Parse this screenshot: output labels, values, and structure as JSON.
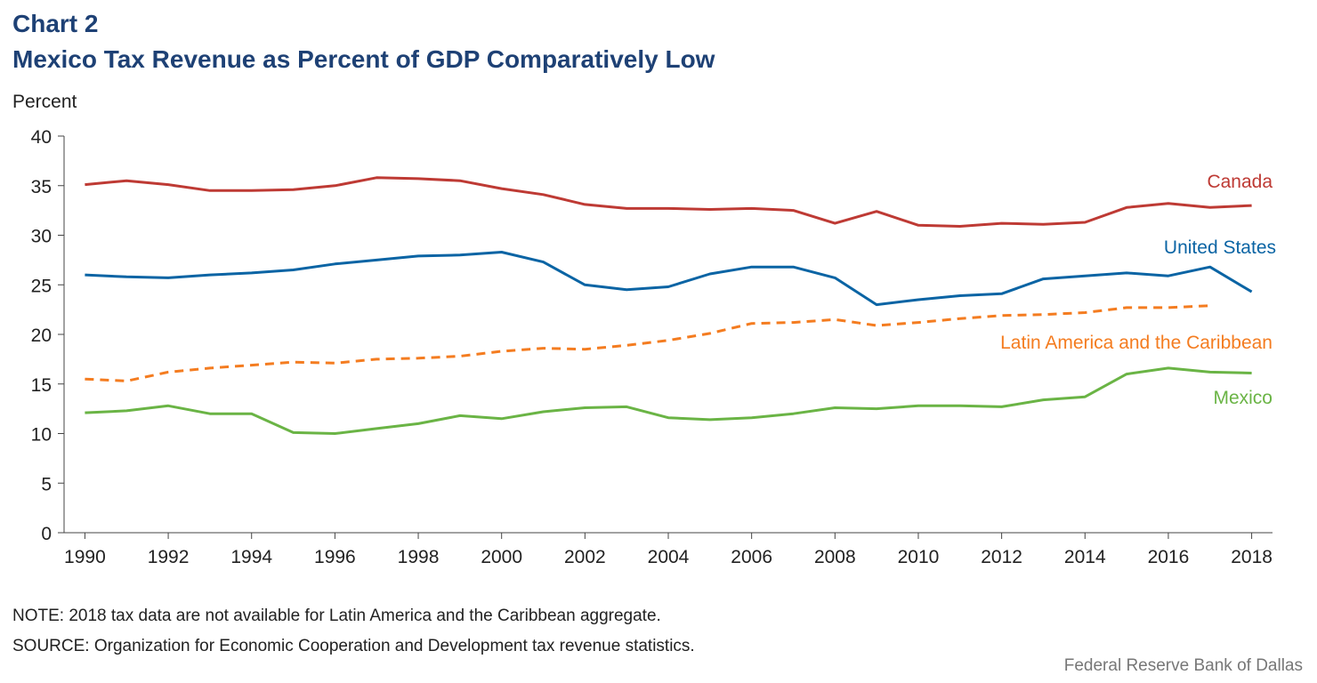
{
  "chart_data": {
    "type": "line",
    "title": "Chart 2",
    "subtitle": "Mexico Tax Revenue as Percent of GDP Comparatively Low",
    "y_label": "Percent",
    "x": [
      1990,
      1991,
      1992,
      1993,
      1994,
      1995,
      1996,
      1997,
      1998,
      1999,
      2000,
      2001,
      2002,
      2003,
      2004,
      2005,
      2006,
      2007,
      2008,
      2009,
      2010,
      2011,
      2012,
      2013,
      2014,
      2015,
      2016,
      2017,
      2018
    ],
    "xlim": [
      1989.5,
      2018.5
    ],
    "xticks": [
      1990,
      1992,
      1994,
      1996,
      1998,
      2000,
      2002,
      2004,
      2006,
      2008,
      2010,
      2012,
      2014,
      2016,
      2018
    ],
    "ylim": [
      0,
      40
    ],
    "yticks": [
      0,
      5,
      10,
      15,
      20,
      25,
      30,
      35,
      40
    ],
    "series": [
      {
        "name": "Canada",
        "color": "#be3a34",
        "dashed": false,
        "values": [
          35.1,
          35.5,
          35.1,
          34.5,
          34.5,
          34.6,
          35.0,
          35.8,
          35.7,
          35.5,
          34.7,
          34.1,
          33.1,
          32.7,
          32.7,
          32.6,
          32.7,
          32.5,
          31.2,
          32.4,
          31.0,
          30.9,
          31.2,
          31.1,
          31.3,
          32.8,
          33.2,
          32.8,
          33.0
        ]
      },
      {
        "name": "United States",
        "color": "#0a64a4",
        "dashed": false,
        "values": [
          26.0,
          25.8,
          25.7,
          26.0,
          26.2,
          26.5,
          27.1,
          27.5,
          27.9,
          28.0,
          28.3,
          27.3,
          25.0,
          24.5,
          24.8,
          26.1,
          26.8,
          26.8,
          25.7,
          23.0,
          23.5,
          23.9,
          24.1,
          25.6,
          25.9,
          26.2,
          25.9,
          26.8,
          24.3
        ]
      },
      {
        "name": "Latin America and the Caribbean",
        "color": "#f47c20",
        "dashed": true,
        "values": [
          15.5,
          15.3,
          16.2,
          16.6,
          16.9,
          17.2,
          17.1,
          17.5,
          17.6,
          17.8,
          18.3,
          18.6,
          18.5,
          18.9,
          19.4,
          20.1,
          21.1,
          21.2,
          21.5,
          20.9,
          21.2,
          21.6,
          21.9,
          22.0,
          22.2,
          22.7,
          22.7,
          22.9,
          null
        ]
      },
      {
        "name": "Mexico",
        "color": "#6ab445",
        "dashed": false,
        "values": [
          12.1,
          12.3,
          12.8,
          12.0,
          12.0,
          10.1,
          10.0,
          10.5,
          11.0,
          11.8,
          11.5,
          12.2,
          12.6,
          12.7,
          11.6,
          11.4,
          11.6,
          12.0,
          12.6,
          12.5,
          12.8,
          12.8,
          12.7,
          13.4,
          13.7,
          16.0,
          16.6,
          16.2,
          16.1
        ]
      }
    ],
    "notes": [
      "NOTE: 2018 tax data are not available for Latin America and the Caribbean aggregate.",
      "SOURCE: Organization for Economic Cooperation and Development tax revenue statistics."
    ],
    "credit": "Federal Reserve Bank of Dallas"
  }
}
